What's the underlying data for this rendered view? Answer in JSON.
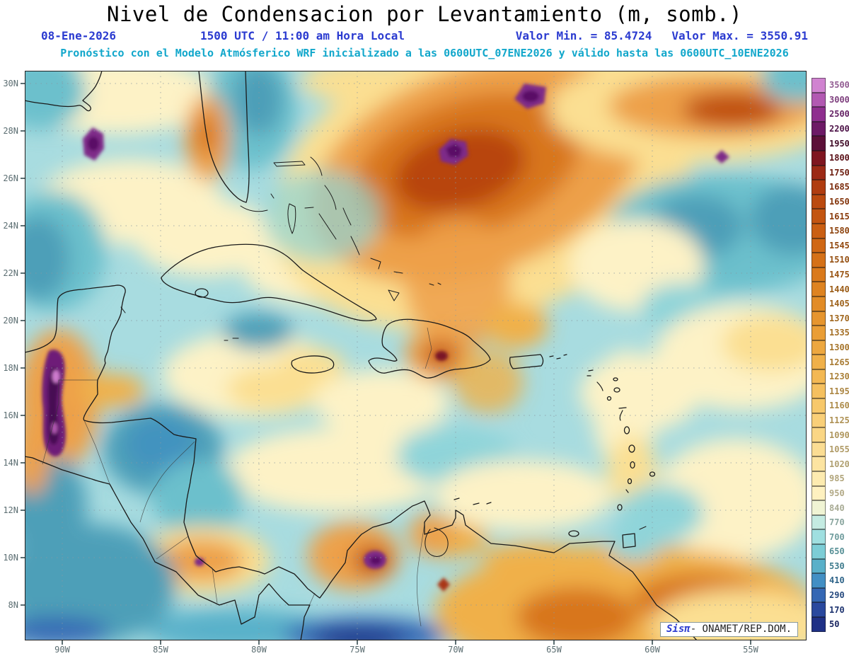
{
  "title": "Nivel de Condensacion por Levantamiento (m, somb.)",
  "header": {
    "date": "08-Ene-2026",
    "valid_local": "1500 UTC / 11:00 am Hora Local",
    "value_min": "Valor Min. = 85.4724",
    "value_max": "Valor Max. = 3550.91",
    "model_line": "Pronóstico con el Modelo Atmósferico WRF inicializado a las 0600UTC_07ENE2026 y válido hasta las  0600UTC_10ENE2026"
  },
  "axes": {
    "lat_ticks": [
      "30N",
      "28N",
      "26N",
      "24N",
      "22N",
      "20N",
      "18N",
      "16N",
      "14N",
      "12N",
      "10N",
      "8N"
    ],
    "lon_ticks": [
      "90W",
      "85W",
      "80W",
      "75W",
      "70W",
      "65W",
      "60W",
      "55W"
    ]
  },
  "colorbar": {
    "levels": [
      3500,
      3000,
      2500,
      2200,
      1950,
      1800,
      1750,
      1685,
      1650,
      1615,
      1580,
      1545,
      1510,
      1475,
      1440,
      1405,
      1370,
      1335,
      1300,
      1265,
      1230,
      1195,
      1160,
      1125,
      1090,
      1055,
      1020,
      985,
      950,
      840,
      770,
      700,
      650,
      530,
      410,
      290,
      170,
      50
    ],
    "colors": [
      "#d083d0",
      "#b259b2",
      "#8f2f8f",
      "#6d1a66",
      "#5c1038",
      "#7f1620",
      "#9c2a16",
      "#b03d10",
      "#bb4a0f",
      "#c35511",
      "#ca5f13",
      "#d06815",
      "#d57118",
      "#da7a1c",
      "#de8321",
      "#e28c27",
      "#e6952e",
      "#ea9e36",
      "#eda73f",
      "#f0b049",
      "#f3b853",
      "#f5c05f",
      "#f7c86b",
      "#f9cf78",
      "#fad685",
      "#fbdd93",
      "#fce4a1",
      "#fdebb0",
      "#fef1c0",
      "#f0f4d4",
      "#c4ebe2",
      "#9fdfe0",
      "#7ccdd6",
      "#59b0c9",
      "#428fc4",
      "#3568b4",
      "#2a499e",
      "#1f3186"
    ]
  },
  "attribution": {
    "app": "Sisπ",
    "org": "- ONAMET/REP.DOM."
  },
  "chart_data": {
    "type": "heatmap",
    "title": "Nivel de Condensacion por Levantamiento (m, somb.)",
    "units": "m",
    "value_min": 85.4724,
    "value_max": 3550.91,
    "date": "08-Ene-2026",
    "valid_at": "1500 UTC / 11:00 am Hora Local",
    "model": "WRF",
    "initialized": "0600UTC_07ENE2026",
    "valid_until": "0600UTC_10ENE2026",
    "lat_range": [
      "8N",
      "30N"
    ],
    "lon_range": [
      "90W",
      "55W"
    ],
    "contour_levels": [
      50,
      170,
      290,
      410,
      530,
      650,
      700,
      770,
      840,
      950,
      985,
      1020,
      1055,
      1090,
      1125,
      1160,
      1195,
      1230,
      1265,
      1300,
      1335,
      1370,
      1405,
      1440,
      1475,
      1510,
      1545,
      1580,
      1615,
      1650,
      1685,
      1750,
      1800,
      1950,
      2200,
      2500,
      3000,
      3500
    ],
    "legend_position": "right"
  }
}
